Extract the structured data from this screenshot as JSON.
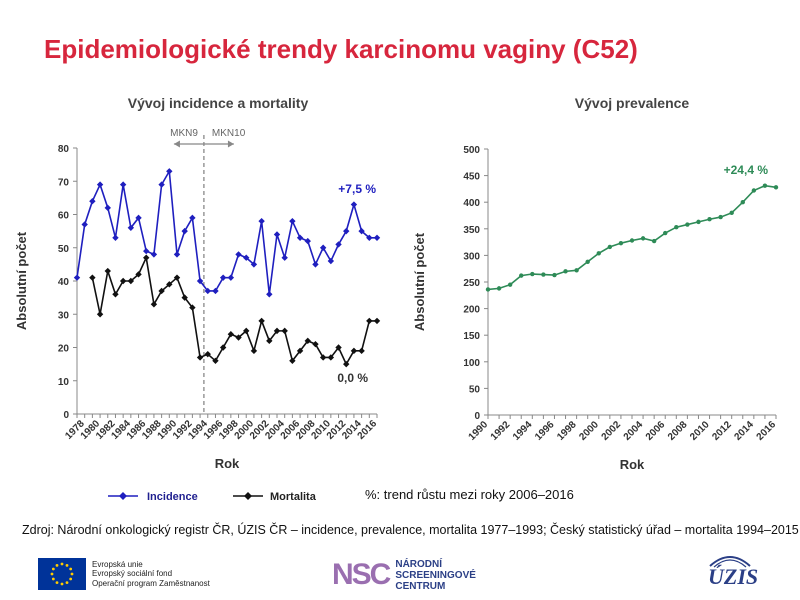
{
  "page_title": "Epidemiologické trendy karcinomu vaginy (C52)",
  "note": "%: trend růstu mezi roky 2006–2016",
  "source": "Zdroj: Národní onkologický registr ČR, ÚZIS ČR – incidence, prevalence, mortalita 1977–1993; Český statistický úřad – mortalita 1994–2015",
  "footer": {
    "eu_lines": [
      "Evropská unie",
      "Evropský sociální fond",
      "Operační program Zaměstnanost"
    ],
    "nsc_mark": "NSC",
    "nsc_lines": [
      "NÁRODNÍ",
      "SCREENINGOVÉ",
      "CENTRUM"
    ],
    "uzis_logo": "ÚZIS"
  },
  "colors": {
    "title": "#d7263d",
    "incidence": "#1f1fbf",
    "mortality": "#111111",
    "prevalence": "#2e8b57"
  },
  "chart_data": [
    {
      "type": "line",
      "title": "Vývoj incidence a mortality",
      "xlabel": "Rok",
      "ylabel": "Absolutní počet",
      "ylim": [
        0,
        80
      ],
      "yticks": [
        0,
        10,
        20,
        30,
        40,
        50,
        60,
        70,
        80
      ],
      "xticks": [
        "1978",
        "1980",
        "1982",
        "1984",
        "1986",
        "1988",
        "1990",
        "1992",
        "1994",
        "1996",
        "1998",
        "2000",
        "2002",
        "2004",
        "2006",
        "2008",
        "2010",
        "2012",
        "2014",
        "2016"
      ],
      "grid": false,
      "legend": "bottom",
      "annotations": {
        "divider_year": 1993.5,
        "left_label": "MKN9",
        "right_label": "MKN10",
        "incidence_trend": "+7,5 %",
        "mortality_trend": "0,0 %"
      },
      "series": [
        {
          "name": "Incidence",
          "x": [
            1977,
            1978,
            1979,
            1980,
            1981,
            1982,
            1983,
            1984,
            1985,
            1986,
            1987,
            1988,
            1989,
            1990,
            1991,
            1992,
            1993,
            1994,
            1995,
            1996,
            1997,
            1998,
            1999,
            2000,
            2001,
            2002,
            2003,
            2004,
            2005,
            2006,
            2007,
            2008,
            2009,
            2010,
            2011,
            2012,
            2013,
            2014,
            2015,
            2016
          ],
          "values": [
            41,
            57,
            64,
            69,
            62,
            53,
            69,
            56,
            59,
            49,
            48,
            69,
            73,
            48,
            55,
            59,
            40,
            37,
            37,
            41,
            41,
            48,
            47,
            45,
            58,
            36,
            54,
            47,
            58,
            53,
            52,
            45,
            50,
            46,
            51,
            55,
            63,
            55,
            53,
            53
          ]
        },
        {
          "name": "Mortalita",
          "x": [
            1979,
            1980,
            1981,
            1982,
            1983,
            1984,
            1985,
            1986,
            1987,
            1988,
            1989,
            1990,
            1991,
            1992,
            1993,
            1994,
            1995,
            1996,
            1997,
            1998,
            1999,
            2000,
            2001,
            2002,
            2003,
            2004,
            2005,
            2006,
            2007,
            2008,
            2009,
            2010,
            2011,
            2012,
            2013,
            2014,
            2015,
            2016
          ],
          "values": [
            41,
            30,
            43,
            36,
            40,
            40,
            42,
            47,
            33,
            37,
            39,
            41,
            35,
            32,
            17,
            18,
            16,
            20,
            24,
            23,
            25,
            19,
            28,
            22,
            25,
            25,
            16,
            19,
            22,
            21,
            17,
            17,
            20,
            15,
            19,
            19,
            28,
            28
          ]
        }
      ]
    },
    {
      "type": "line",
      "title": "Vývoj prevalence",
      "xlabel": "Rok",
      "ylabel": "Absolutní počet",
      "ylim": [
        0,
        500
      ],
      "yticks": [
        0,
        50,
        100,
        150,
        200,
        250,
        300,
        350,
        400,
        450,
        500
      ],
      "xticks": [
        "1990",
        "1992",
        "1994",
        "1996",
        "1998",
        "2000",
        "2002",
        "2004",
        "2006",
        "2008",
        "2010",
        "2012",
        "2014",
        "2016"
      ],
      "grid": false,
      "annotations": {
        "trend": "+24,4 %"
      },
      "series": [
        {
          "name": "Prevalence",
          "x": [
            1990,
            1991,
            1992,
            1993,
            1994,
            1995,
            1996,
            1997,
            1998,
            1999,
            2000,
            2001,
            2002,
            2003,
            2004,
            2005,
            2006,
            2007,
            2008,
            2009,
            2010,
            2011,
            2012,
            2013,
            2014,
            2015,
            2016
          ],
          "values": [
            236,
            238,
            245,
            262,
            265,
            264,
            263,
            270,
            272,
            288,
            304,
            316,
            323,
            328,
            332,
            327,
            342,
            353,
            358,
            363,
            368,
            372,
            380,
            400,
            422,
            431,
            428
          ]
        }
      ]
    }
  ]
}
